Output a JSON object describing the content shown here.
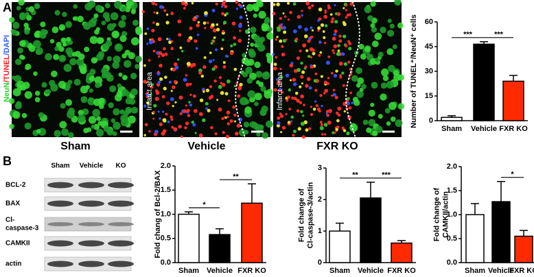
{
  "panel_labels": [
    "A",
    "B"
  ],
  "stain_label": [
    "NeuN",
    "/TUNEL",
    "/DAPI"
  ],
  "stain_colors": [
    "#2fd12f",
    "#ff2020",
    "#3060ff"
  ],
  "image_labels": [
    "Sham",
    "Vehicle",
    "FXR KO"
  ],
  "infarct_label": "Infarct area",
  "blot": {
    "columns": [
      "Sham",
      "Vehicle",
      "KO"
    ],
    "rows": [
      [
        "BCL-2"
      ],
      [
        "BAX"
      ],
      [
        "Cl-",
        "caspase-3"
      ],
      [
        "CAMKII"
      ],
      [
        "actin"
      ]
    ]
  },
  "chart_data": [
    {
      "type": "bar",
      "ylabel": "Number of TUNEL⁺/NeuN⁺ cells",
      "categories": [
        "Sham",
        "Vehicle",
        "FXR KO"
      ],
      "values": [
        2,
        46.5,
        24
      ],
      "errors": [
        1,
        1.5,
        3.5
      ],
      "colors": [
        "#ffffff",
        "#000000",
        "#ff2a00"
      ],
      "ylim": [
        0,
        60
      ],
      "yticks": [
        0,
        15,
        30,
        45,
        60
      ],
      "annotations": [
        {
          "text": "***",
          "between": [
            "Sham",
            "Vehicle"
          ]
        },
        {
          "text": "***",
          "between": [
            "Vehicle",
            "FXR KO"
          ]
        }
      ]
    },
    {
      "type": "bar",
      "ylabel": "Fold chang of Bcl-2/BAX",
      "categories": [
        "Sham",
        "Vehicle",
        "FXR KO"
      ],
      "values": [
        1.0,
        0.58,
        1.23
      ],
      "errors": [
        0.05,
        0.12,
        0.4
      ],
      "colors": [
        "#ffffff",
        "#000000",
        "#ff2a00"
      ],
      "ylim": [
        0,
        2
      ],
      "yticks": [
        {
          "value": 0,
          "label": "0.0"
        },
        0.5,
        {
          "value": 1,
          "label": "1.0"
        },
        1.5,
        {
          "value": 2,
          "label": "2.0"
        }
      ],
      "annotations": [
        {
          "text": "*",
          "between": [
            "Sham",
            "Vehicle"
          ]
        },
        {
          "text": "**",
          "between": [
            "Vehicle",
            "FXR KO"
          ]
        }
      ]
    },
    {
      "type": "bar",
      "ylabel": [
        "Fold change of",
        "Cl-caspase-3/actin"
      ],
      "categories": [
        "Sham",
        "Vehicle",
        "FXR KO"
      ],
      "values": [
        1.0,
        2.05,
        0.62
      ],
      "errors": [
        0.25,
        0.5,
        0.08
      ],
      "colors": [
        "#ffffff",
        "#000000",
        "#ff2a00"
      ],
      "ylim": [
        0,
        3
      ],
      "yticks": [
        0,
        1,
        2,
        3
      ],
      "annotations": [
        {
          "text": "**",
          "between": [
            "Sham",
            "Vehicle"
          ]
        },
        {
          "text": "***",
          "between": [
            "Vehicle",
            "FXR KO"
          ]
        }
      ]
    },
    {
      "type": "bar",
      "ylabel": [
        "Fold change of",
        "CAMKII/actin"
      ],
      "categories": [
        "Sham",
        "Vehicle",
        "FXR KO"
      ],
      "values": [
        1.0,
        1.27,
        0.55
      ],
      "errors": [
        0.23,
        0.42,
        0.12
      ],
      "colors": [
        "#ffffff",
        "#000000",
        "#ff2a00"
      ],
      "ylim": [
        0,
        2
      ],
      "yticks": [
        {
          "value": 0,
          "label": "0.0"
        },
        0.5,
        {
          "value": 1,
          "label": "1.0"
        },
        1.5,
        {
          "value": 2,
          "label": "2.0"
        }
      ],
      "annotations": [
        {
          "text": "*",
          "between": [
            "Vehicle",
            "FXR KO"
          ]
        }
      ]
    }
  ]
}
